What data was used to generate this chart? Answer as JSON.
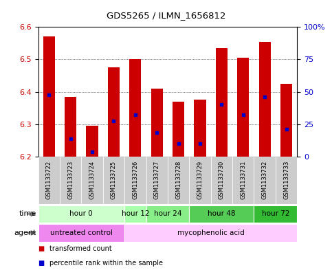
{
  "title": "GDS5265 / ILMN_1656812",
  "samples": [
    "GSM1133722",
    "GSM1133723",
    "GSM1133724",
    "GSM1133725",
    "GSM1133726",
    "GSM1133727",
    "GSM1133728",
    "GSM1133729",
    "GSM1133730",
    "GSM1133731",
    "GSM1133732",
    "GSM1133733"
  ],
  "bar_tops": [
    6.57,
    6.385,
    6.295,
    6.475,
    6.5,
    6.41,
    6.37,
    6.375,
    6.535,
    6.505,
    6.555,
    6.425
  ],
  "bar_bottom": 6.2,
  "percentile_values": [
    6.39,
    6.255,
    6.215,
    6.31,
    6.33,
    6.275,
    6.24,
    6.24,
    6.36,
    6.33,
    6.385,
    6.285
  ],
  "ylim": [
    6.2,
    6.6
  ],
  "yticks_left": [
    6.2,
    6.3,
    6.4,
    6.5,
    6.6
  ],
  "yticks_right_vals": [
    0,
    25,
    50,
    75,
    100
  ],
  "yticks_right_labels": [
    "0",
    "25",
    "50",
    "75",
    "100%"
  ],
  "bar_color": "#cc0000",
  "percentile_color": "#0000cc",
  "grid_color": "#000000",
  "time_groups": [
    {
      "label": "hour 0",
      "start": 0,
      "end": 3,
      "color": "#ccffcc"
    },
    {
      "label": "hour 12",
      "start": 4,
      "end": 4,
      "color": "#aaffaa"
    },
    {
      "label": "hour 24",
      "start": 5,
      "end": 6,
      "color": "#88ee88"
    },
    {
      "label": "hour 48",
      "start": 7,
      "end": 9,
      "color": "#55cc55"
    },
    {
      "label": "hour 72",
      "start": 10,
      "end": 11,
      "color": "#33bb33"
    }
  ],
  "agent_groups": [
    {
      "label": "untreated control",
      "start": 0,
      "end": 3,
      "color": "#ee88ee"
    },
    {
      "label": "mycophenolic acid",
      "start": 4,
      "end": 11,
      "color": "#ffccff"
    }
  ],
  "left_label_color": "#cc0000",
  "right_label_color": "#0000cc",
  "sample_bg_color": "#cccccc",
  "time_row_label": "time",
  "agent_row_label": "agent",
  "legend_items": [
    {
      "color": "#cc0000",
      "label": "transformed count"
    },
    {
      "color": "#0000cc",
      "label": "percentile rank within the sample"
    }
  ]
}
